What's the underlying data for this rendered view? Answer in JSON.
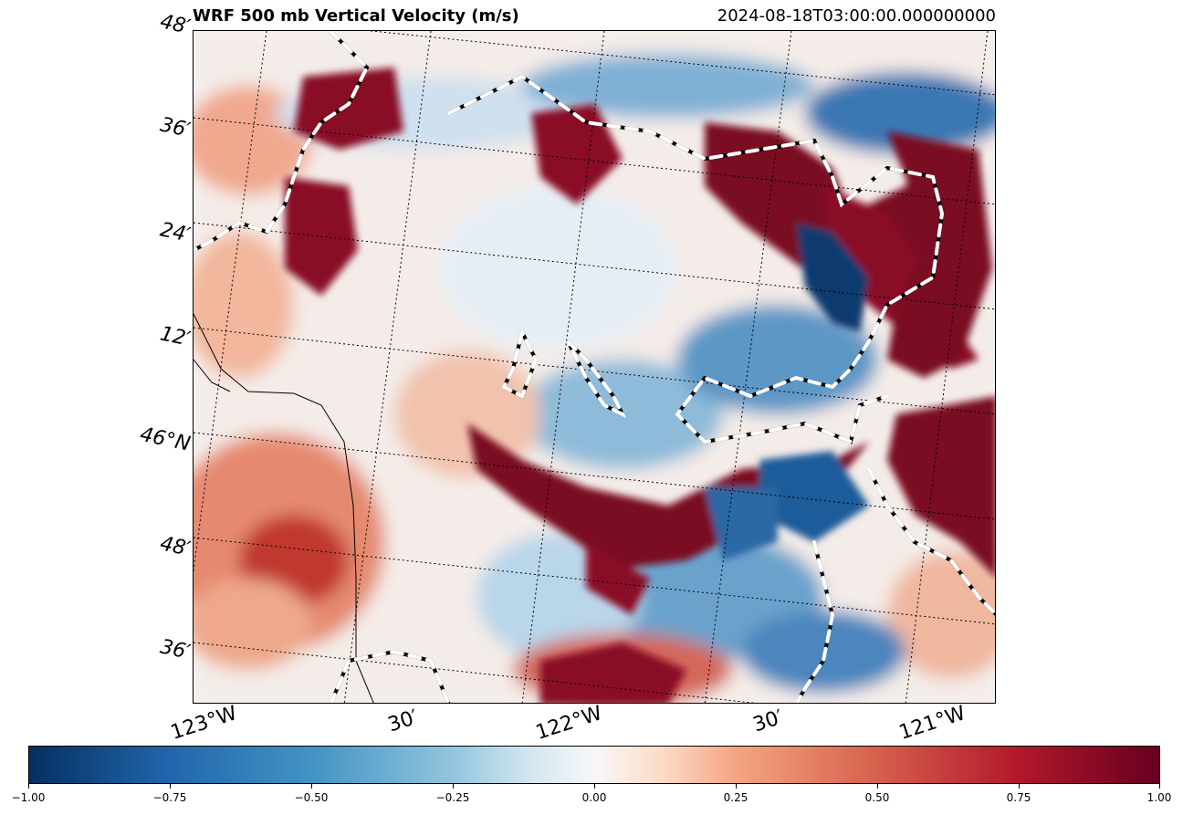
{
  "header": {
    "title": "WRF 500 mb Vertical Velocity (m/s)",
    "valid_time": "2024-08-18T03:00:00.000000000"
  },
  "map": {
    "lat_labels": [
      "48′",
      "36′",
      "24′",
      "12′",
      "46°N",
      "48′",
      "36′"
    ],
    "lon_labels": [
      "123°W",
      "30′",
      "122°W",
      "30′",
      "121°W"
    ],
    "colormap": "RdBu_r",
    "colors": {
      "neg_strong": "#053061",
      "neutral": "#f7f7f7",
      "pos_strong": "#67001f"
    }
  },
  "colorbar": {
    "min": -1.0,
    "max": 1.0,
    "tick_labels": [
      "−1.00",
      "−0.75",
      "−0.50",
      "−0.25",
      "0.00",
      "0.25",
      "0.50",
      "0.75",
      "1.00"
    ]
  }
}
